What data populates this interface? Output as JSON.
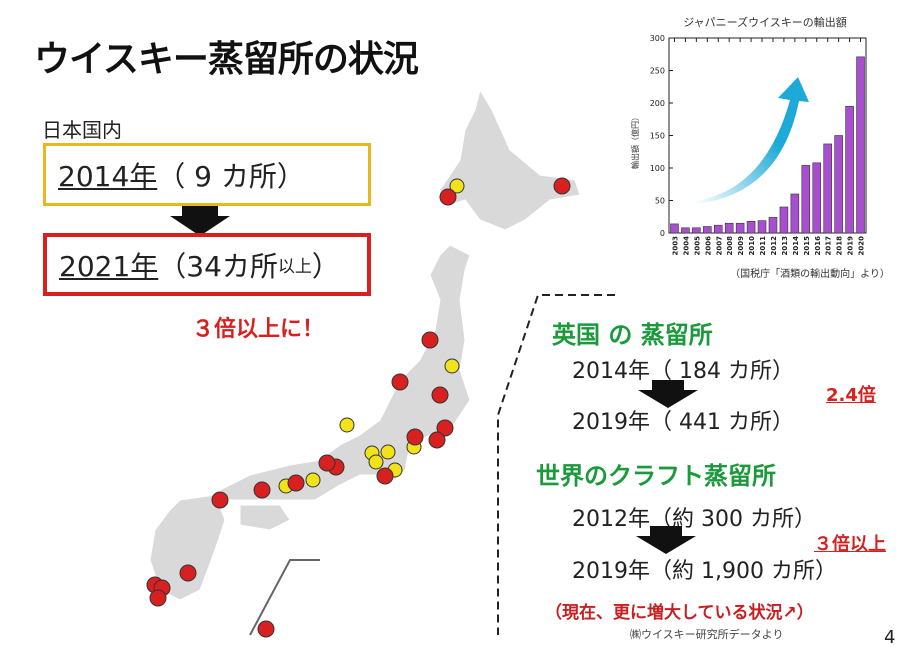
{
  "title": "ウイスキー蒸留所の状況",
  "japan": {
    "label": "日本国内",
    "year1": "2014年",
    "count1": "（ 9 カ所）",
    "year2": "2021年",
    "count2": "（34カ所",
    "count2_small": "以上",
    "count2_end": "）",
    "increase": "３倍以上に！"
  },
  "uk": {
    "heading": "英国 の 蒸留所",
    "line1": "2014年（ 184 カ所）",
    "line2": "2019年（ 441 カ所）",
    "ratio": "2.4倍"
  },
  "world": {
    "heading": "世界のクラフト蒸留所",
    "line1": "2012年（約 300 カ所）",
    "line2": "2019年（約 1,900 カ所）",
    "ratio": "３倍以上",
    "note": "（現在、更に増大している状況↗）",
    "source": "㈱ウイスキー研究所データより"
  },
  "page_number": "4",
  "colors": {
    "red": "#d82020",
    "yellow": "#f2e21a",
    "green": "#1a9a3a",
    "bar": "#a84fd0"
  },
  "chart_data": {
    "type": "bar",
    "title": "ジャパニーズウイスキーの輸出額",
    "ylabel": "輸出額（億円）",
    "xlabel": "",
    "ylim": [
      0,
      300
    ],
    "yticks": [
      0,
      50,
      100,
      150,
      200,
      250,
      300
    ],
    "categories": [
      "2003",
      "2004",
      "2005",
      "2006",
      "2007",
      "2008",
      "2009",
      "2010",
      "2011",
      "2012",
      "2013",
      "2014",
      "2015",
      "2016",
      "2017",
      "2018",
      "2019",
      "2020"
    ],
    "values": [
      14,
      8,
      8,
      10,
      12,
      15,
      15,
      18,
      19,
      24,
      40,
      60,
      104,
      108,
      137,
      150,
      195,
      271
    ],
    "source": "（国税庁「酒類の輸出動向」より）"
  }
}
